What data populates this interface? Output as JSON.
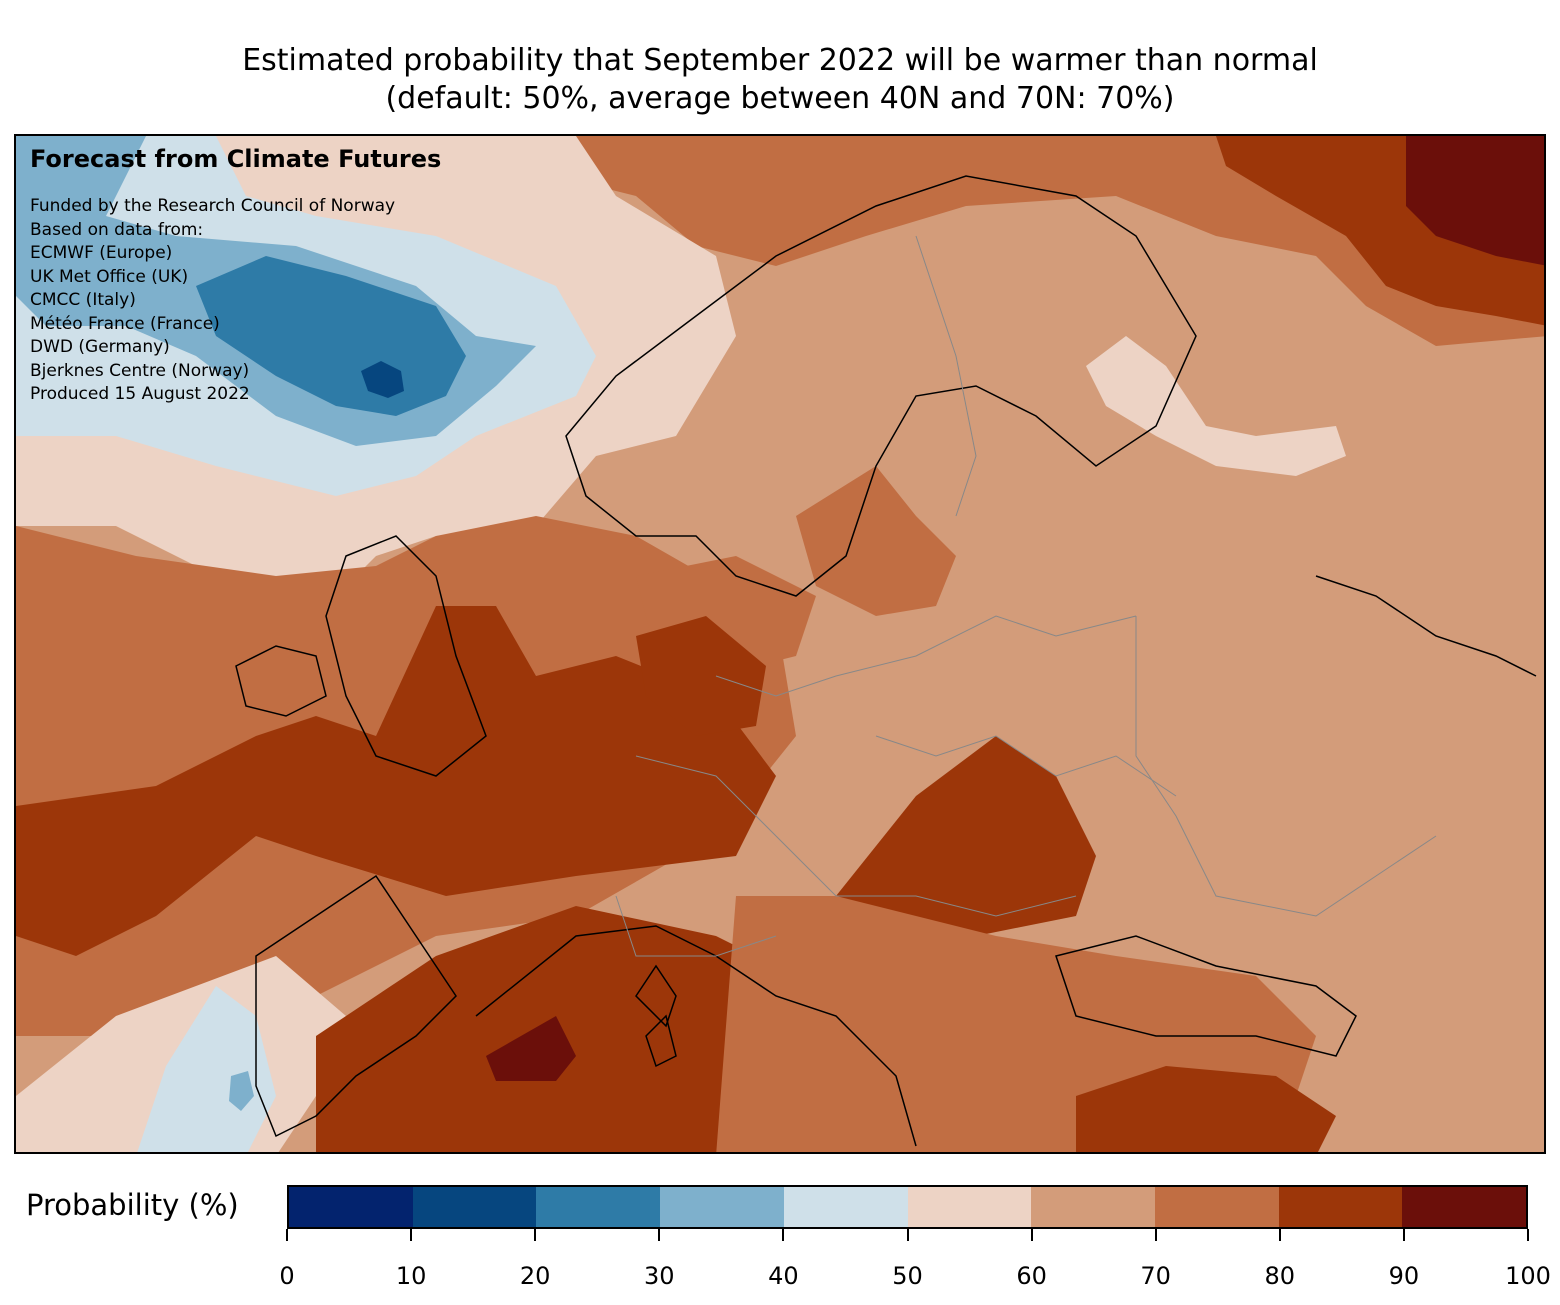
{
  "title_line1": "Estimated probability that September 2022 will be warmer than normal",
  "title_line2": "(default: 50%, average between 40N and 70N: 70%)",
  "overlay": {
    "heading": "Forecast from Climate Futures",
    "lines": [
      "Funded by the Research Council of Norway",
      "Based on data from:",
      "ECMWF (Europe)",
      "UK Met Office (UK)",
      "CMCC (Italy)",
      "Météo France (France)",
      "DWD (Germany)",
      "Bjerknes Centre (Norway)",
      "Produced 15 August 2022"
    ]
  },
  "colorbar": {
    "label": "Probability (%)",
    "min": 0,
    "max": 100,
    "ticks": [
      "0",
      "10",
      "20",
      "30",
      "40",
      "50",
      "60",
      "70",
      "80",
      "90",
      "100"
    ],
    "colors": [
      "#03236e",
      "#06467f",
      "#2e7ba7",
      "#7eb0cc",
      "#cfe0e9",
      "#edd3c5",
      "#d39c7a",
      "#c16e43",
      "#9c3609",
      "#6b0f0a"
    ]
  },
  "map_regions": [
    {
      "name": "northwest-atlantic-cool-anomaly",
      "probability_band": "40-50",
      "color": "#cfe0e9"
    },
    {
      "name": "north-atlantic-cold-core",
      "probability_band": "10-20",
      "color": "#06467f"
    },
    {
      "name": "iberian-atlantic-coast-cool",
      "probability_band": "40-50",
      "color": "#cfe0e9"
    },
    {
      "name": "scandinavia-russia-moderate",
      "probability_band": "60-70",
      "color": "#d39c7a"
    },
    {
      "name": "western-mediterranean-hot",
      "probability_band": "90-100",
      "color": "#6b0f0a"
    },
    {
      "name": "northeast-corner-hot",
      "probability_band": "90-100",
      "color": "#6b0f0a"
    }
  ]
}
